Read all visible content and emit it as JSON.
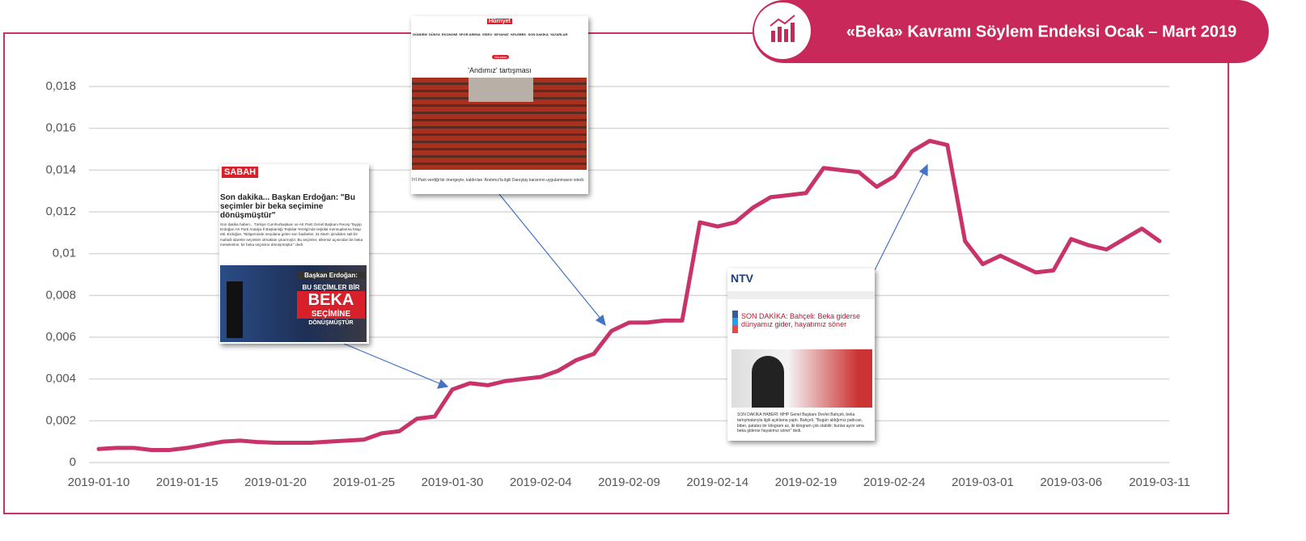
{
  "chart_data": {
    "type": "line",
    "title": "«Beka» Kavramı Söylem Endeksi Ocak – Mart 2019",
    "color": "#c8336a",
    "grid": true,
    "x": [
      "2019-01-10",
      "2019-01-11",
      "2019-01-12",
      "2019-01-13",
      "2019-01-14",
      "2019-01-15",
      "2019-01-16",
      "2019-01-17",
      "2019-01-18",
      "2019-01-19",
      "2019-01-20",
      "2019-01-21",
      "2019-01-22",
      "2019-01-23",
      "2019-01-24",
      "2019-01-25",
      "2019-01-26",
      "2019-01-27",
      "2019-01-28",
      "2019-01-29",
      "2019-01-30",
      "2019-01-31",
      "2019-02-01",
      "2019-02-02",
      "2019-02-03",
      "2019-02-04",
      "2019-02-05",
      "2019-02-06",
      "2019-02-07",
      "2019-02-08",
      "2019-02-09",
      "2019-02-10",
      "2019-02-11",
      "2019-02-12",
      "2019-02-13",
      "2019-02-14",
      "2019-02-15",
      "2019-02-16",
      "2019-02-17",
      "2019-02-18",
      "2019-02-19",
      "2019-02-20",
      "2019-02-21",
      "2019-02-22",
      "2019-02-23",
      "2019-02-24",
      "2019-02-25",
      "2019-02-26",
      "2019-02-27",
      "2019-02-28",
      "2019-03-01",
      "2019-03-02",
      "2019-03-03",
      "2019-03-04",
      "2019-03-05",
      "2019-03-06",
      "2019-03-07",
      "2019-03-08",
      "2019-03-09",
      "2019-03-10",
      "2019-03-11"
    ],
    "values": [
      0.00065,
      0.0007,
      0.0007,
      0.0006,
      0.0006,
      0.0007,
      0.00085,
      0.001,
      0.00105,
      0.00098,
      0.00095,
      0.00095,
      0.00095,
      0.001,
      0.00105,
      0.0011,
      0.0014,
      0.0015,
      0.0021,
      0.0022,
      0.0035,
      0.0038,
      0.0037,
      0.0039,
      0.004,
      0.0041,
      0.0044,
      0.0049,
      0.0052,
      0.0063,
      0.0067,
      0.0067,
      0.0068,
      0.0068,
      0.0115,
      0.0113,
      0.0115,
      0.0122,
      0.0127,
      0.0128,
      0.0129,
      0.0141,
      0.014,
      0.0139,
      0.0132,
      0.0137,
      0.0149,
      0.0154,
      0.0152,
      0.0106,
      0.0095,
      0.0099,
      0.0095,
      0.0091,
      0.0092,
      0.0107,
      0.0104,
      0.0102,
      0.0107,
      0.0112,
      0.0106
    ],
    "xlim": [
      "2019-01-10",
      "2019-03-11"
    ],
    "xticks": [
      "2019-01-10",
      "2019-01-15",
      "2019-01-20",
      "2019-01-25",
      "2019-01-30",
      "2019-02-04",
      "2019-02-09",
      "2019-02-14",
      "2019-02-19",
      "2019-02-24",
      "2019-03-01",
      "2019-03-06",
      "2019-03-11"
    ],
    "ylim": [
      0,
      0.018
    ],
    "yticks": [
      0,
      {
        "value": 0.002,
        "label": "0,002"
      },
      {
        "value": 0.004,
        "label": "0,004"
      },
      {
        "value": 0.006,
        "label": "0,006"
      },
      {
        "value": 0.008,
        "label": "0,008"
      },
      {
        "value": 0.01,
        "label": "0,01"
      },
      {
        "value": 0.012,
        "label": "0,012"
      },
      {
        "value": 0.014,
        "label": "0,014"
      },
      {
        "value": 0.016,
        "label": "0,016"
      },
      {
        "value": 0.018,
        "label": "0,018"
      }
    ]
  },
  "insets": [
    {
      "source": "SABAH",
      "headline": "Son dakika... Başkan Erdoğan: \"Bu seçimler bir beka seçimine dönüşmüştür\"",
      "body": "Son dakika haberi... Türkiye Cumhurbaşkanı ve AK Parti Genel Başkanı Recep Tayyip Erdoğan AK Parti Antalya İl Başkanlığı Teşkilat Yerelgi'nde teşkilat mensuplarına hitap etti. Erdoğan, \"Bölgemizde meydana gelen son hadiseler, 31 Mart'ı şimdiden salt bir mahalli idareler seçimleri olmaktan çıkarmıştır. Bu seçimler, ülkemiz açısından bir beka meselesine, bir beka seçimine dönüşmüştür.\" dedi.",
      "image_text": [
        "Başkan Erdoğan:",
        "BU SEÇİMLER BİR",
        "BEKA",
        "SEÇİMİNE",
        "DÖNÜŞMÜŞTÜR"
      ]
    },
    {
      "source": "Hürriyet",
      "nav": "GÜNDEM  DÜNYA  EKONOMİ  SPOR ARENA  VİDEO  SEYAHAT  KELEBEK  SON DAKİKA  YAZARLAR",
      "tag": "Gündem",
      "headline": "'Andımız' tartışması",
      "caption": "İYİ Parti verdiği bir önergeyle, kaldırılan 'Andımız'la ilgili Danıştay kararının uygulanmasını istedi."
    },
    {
      "source": "NTV",
      "headline": "SON DAKİKA: Bahçeli: Beka giderse dünyamız gider, hayatımız söner",
      "caption": "SON DAKİKA HABERİ: MHP Genel Başkanı Devlet Bahçeli, beka tartışmalarıyla ilgili açıklama yaptı. Bahçeli, \"Bugün aldığımız patlıcan, biber, patates bir kilogram az, iki kilogram çok olabilir; bunlar ayılır ama beka giderse hayatımız söner\" dedi."
    }
  ]
}
